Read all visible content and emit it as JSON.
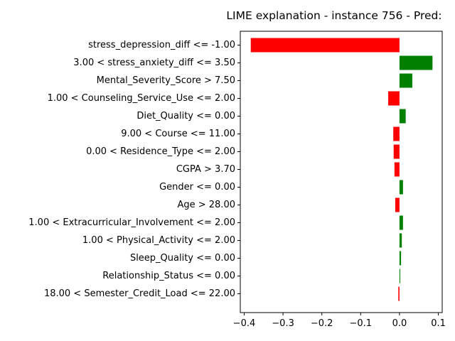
{
  "chart_data": {
    "type": "bar",
    "orientation": "horizontal",
    "title": "LIME explanation - instance 756 - Pred:",
    "xlabel": "",
    "ylabel": "",
    "xlim": [
      -0.41,
      0.11
    ],
    "xticks": [
      -0.4,
      -0.3,
      -0.2,
      -0.1,
      0.0,
      0.1
    ],
    "xtick_labels": [
      "−0.4",
      "−0.3",
      "−0.2",
      "−0.1",
      "0.0",
      "0.1"
    ],
    "grid": false,
    "positive_color": "#008000",
    "negative_color": "#ff0000",
    "categories": [
      "stress_depression_diff <= -1.00",
      "3.00 < stress_anxiety_diff <= 3.50",
      "Mental_Severity_Score > 7.50",
      "1.00 < Counseling_Service_Use <= 2.00",
      "Diet_Quality <= 0.00",
      "9.00 < Course <= 11.00",
      "0.00 < Residence_Type <= 2.00",
      "CGPA > 3.70",
      "Gender <= 0.00",
      "Age > 28.00",
      "1.00 < Extracurricular_Involvement <= 2.00",
      "1.00 < Physical_Activity <= 2.00",
      "Sleep_Quality <= 0.00",
      "Relationship_Status <= 0.00",
      "18.00 < Semester_Credit_Load <= 22.00"
    ],
    "values": [
      -0.383,
      0.085,
      0.033,
      -0.029,
      0.016,
      -0.016,
      -0.015,
      -0.013,
      0.009,
      -0.011,
      0.009,
      0.006,
      0.004,
      0.002,
      -0.003
    ]
  }
}
